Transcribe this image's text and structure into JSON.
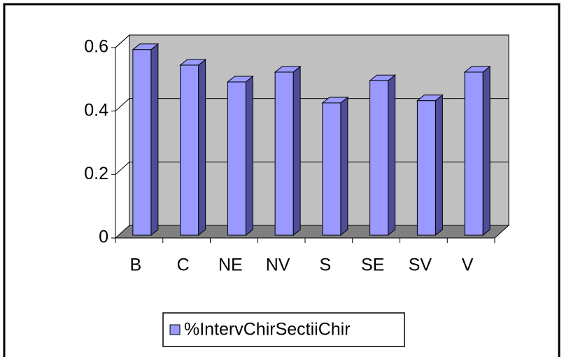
{
  "chart_data": {
    "type": "bar",
    "categories": [
      "B",
      "C",
      "NE",
      "NV",
      "S",
      "SE",
      "SV",
      "V"
    ],
    "series": [
      {
        "name": "%IntervChirSectiiChir",
        "color": "#9999ff",
        "values": [
          0.585,
          0.536,
          0.483,
          0.514,
          0.417,
          0.487,
          0.424,
          0.514
        ]
      }
    ],
    "ylim": [
      0,
      0.6
    ],
    "yticks": [
      0,
      0.2,
      0.4,
      0.6
    ],
    "grid": true,
    "legend": "bottom"
  }
}
